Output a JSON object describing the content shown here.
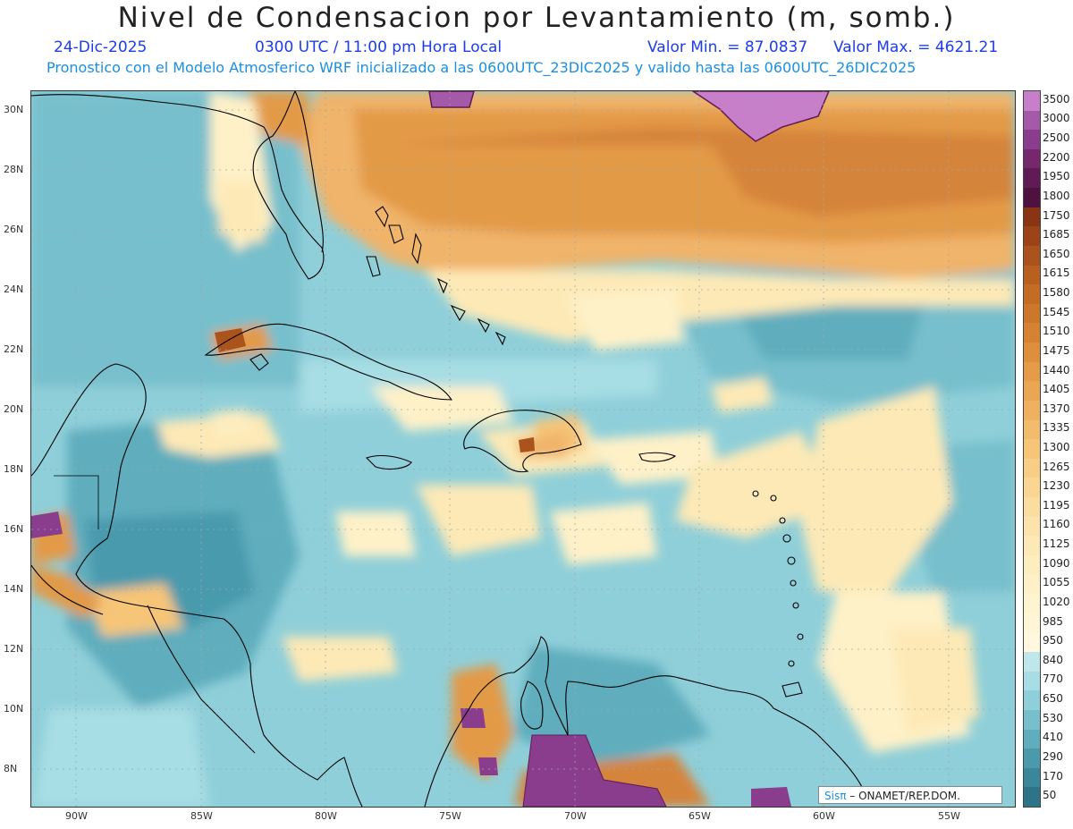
{
  "header": {
    "title": "Nivel de Condensacion por Levantamiento (m, somb.)",
    "date": "24-Dic-2025",
    "time": "0300 UTC / 11:00 pm Hora Local",
    "min": "Valor Min. = 87.0837",
    "max": "Valor Max. = 4621.21",
    "model_line": "Pronostico con el Modelo Atmosferico WRF inicializado a las 0600UTC_23DIC2025 y valido hasta las  0600UTC_26DIC2025"
  },
  "axes": {
    "lat_labels": [
      "30N",
      "28N",
      "26N",
      "24N",
      "22N",
      "20N",
      "18N",
      "16N",
      "14N",
      "12N",
      "10N",
      "8N"
    ],
    "lon_labels": [
      "90W",
      "85W",
      "80W",
      "75W",
      "70W",
      "65W",
      "60W",
      "55W"
    ]
  },
  "legend": {
    "labels": [
      "3500",
      "3000",
      "2500",
      "2200",
      "1950",
      "1800",
      "1750",
      "1685",
      "1650",
      "1615",
      "1580",
      "1545",
      "1510",
      "1475",
      "1440",
      "1405",
      "1370",
      "1335",
      "1300",
      "1265",
      "1230",
      "1195",
      "1160",
      "1125",
      "1090",
      "1055",
      "1020",
      "985",
      "950",
      "840",
      "770",
      "650",
      "530",
      "410",
      "290",
      "170",
      "50"
    ],
    "colors": [
      "#c77fc9",
      "#a45aa8",
      "#8a3d8d",
      "#76276e",
      "#601a56",
      "#4f1240",
      "#8a3416",
      "#9c4418",
      "#aa531c",
      "#b96020",
      "#c46b24",
      "#cd772b",
      "#d58333",
      "#de8f3c",
      "#e59b47",
      "#eaa753",
      "#efb160",
      "#f3bb6c",
      "#f6c578",
      "#f8ce85",
      "#fad692",
      "#fbdd9f",
      "#fce3ab",
      "#fde9b6",
      "#fdedbf",
      "#fef1c8",
      "#fef4d0",
      "#fff6d7",
      "#fff8de",
      "#bfe7eb",
      "#a7dde4",
      "#8fcfd9",
      "#77bfcc",
      "#5fadbd",
      "#4a9aad",
      "#3a879c",
      "#2d7488"
    ]
  },
  "credit": {
    "sis": "Sisπ",
    "org": "– ONAMET/REP.DOM."
  }
}
